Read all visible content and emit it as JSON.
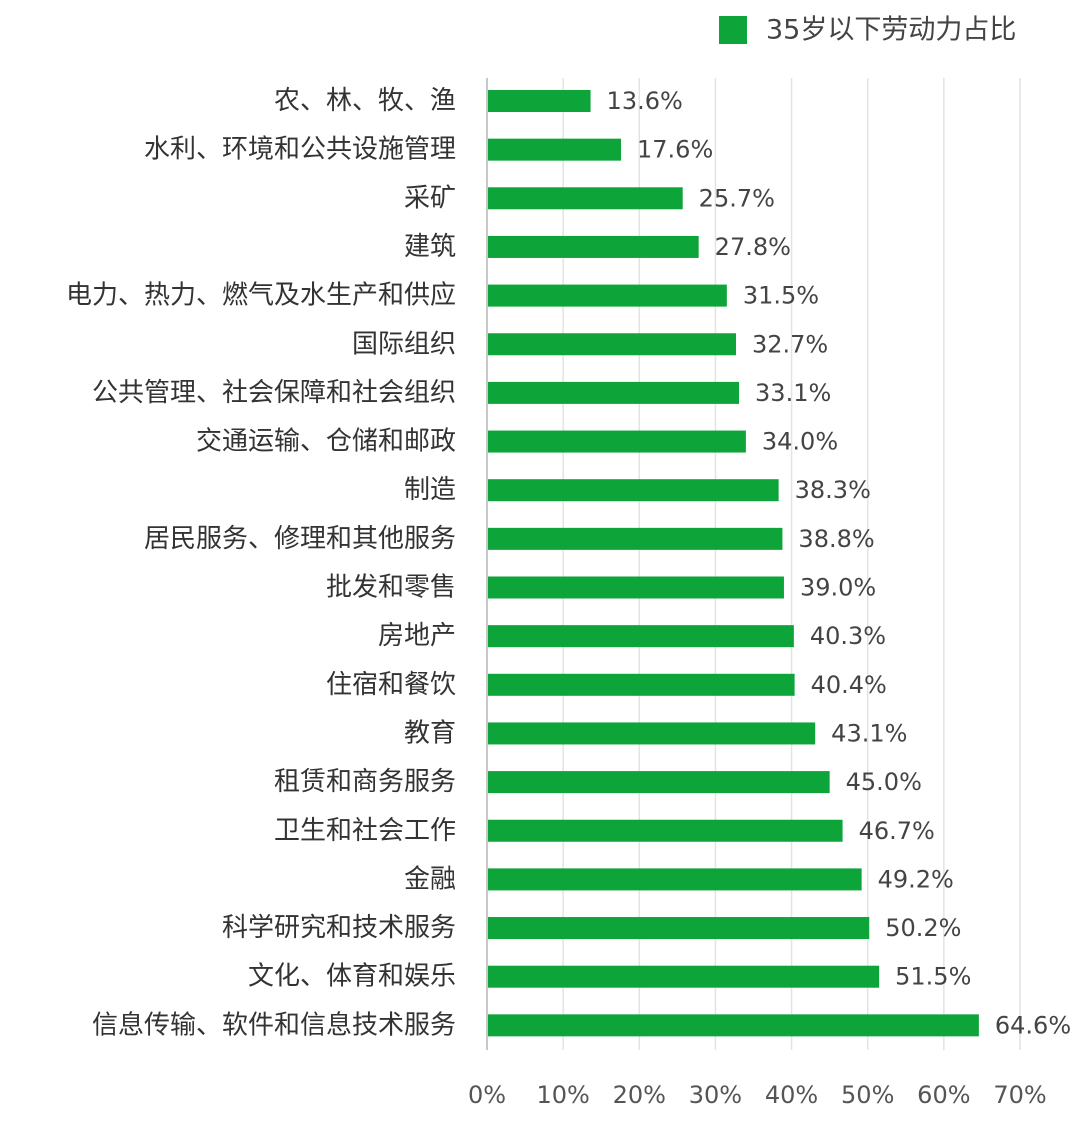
{
  "chart_data": {
    "type": "bar",
    "orientation": "horizontal",
    "categories": [
      "农、林、牧、渔",
      "水利、环境和公共设施管理",
      "采矿",
      "建筑",
      "电力、热力、燃气及水生产和供应",
      "国际组织",
      "公共管理、社会保障和社会组织",
      "交通运输、仓储和邮政",
      "制造",
      "居民服务、修理和其他服务",
      "批发和零售",
      "房地产",
      "住宿和餐饮",
      "教育",
      "租赁和商务服务",
      "卫生和社会工作",
      "金融",
      "科学研究和技术服务",
      "文化、体育和娱乐",
      "信息传输、软件和信息技术服务"
    ],
    "series": [
      {
        "name": "35岁以下劳动力占比",
        "color": "#0da43a",
        "values": [
          13.6,
          17.6,
          25.7,
          27.8,
          31.5,
          32.7,
          33.1,
          34.0,
          38.3,
          38.8,
          39.0,
          40.3,
          40.4,
          43.1,
          45.0,
          46.7,
          49.2,
          50.2,
          51.5,
          64.6
        ],
        "value_labels": [
          "13.6%",
          "17.6%",
          "25.7%",
          "27.8%",
          "31.5%",
          "32.7%",
          "33.1%",
          "34.0%",
          "38.3%",
          "38.8%",
          "39.0%",
          "40.3%",
          "40.4%",
          "43.1%",
          "45.0%",
          "46.7%",
          "49.2%",
          "50.2%",
          "51.5%",
          "64.6%"
        ]
      }
    ],
    "xlim": [
      0,
      70
    ],
    "x_ticks": [
      0,
      10,
      20,
      30,
      40,
      50,
      60,
      70
    ],
    "x_tick_labels": [
      "0%",
      "10%",
      "20%",
      "30%",
      "40%",
      "50%",
      "60%",
      "70%"
    ],
    "grid": "vertical",
    "legend": "top-right",
    "title": "",
    "xlabel": "",
    "ylabel": "",
    "colors": {
      "bar": "#0da43a",
      "grid": "#e3e3e3",
      "axis": "#c8c8c8"
    }
  }
}
